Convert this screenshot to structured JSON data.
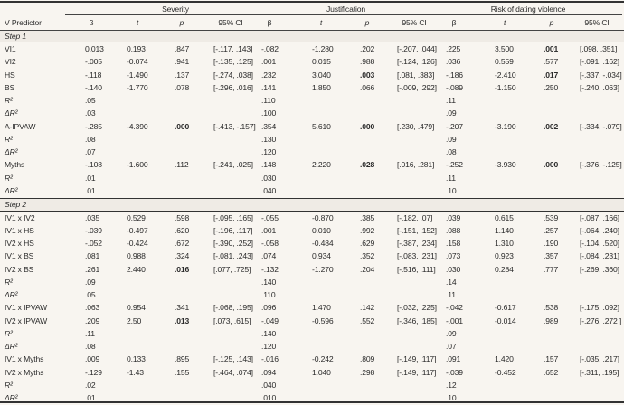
{
  "table": {
    "groups": [
      "Severity",
      "Justification",
      "Risk of dating violence"
    ],
    "header": {
      "predictor": "V Predictor",
      "beta": "β",
      "t": "t",
      "p": "p",
      "ci": "95% CI"
    },
    "steps": [
      {
        "label": "Step 1",
        "rows": [
          {
            "label": "VI1",
            "italic": false,
            "sev": [
              "0.013",
              "0.193",
              ".847",
              "[-.117, .143]"
            ],
            "jus": [
              "-.082",
              "-1.280",
              ".202",
              "[-.207, .044]"
            ],
            "risk": [
              ".225",
              "3.500",
              ".001",
              "[.098, .351]"
            ],
            "bold": {
              "sev": false,
              "jus": false,
              "risk": true
            }
          },
          {
            "label": "VI2",
            "italic": false,
            "sev": [
              "-.005",
              "-0.074",
              ".941",
              "[-.135, .125]"
            ],
            "jus": [
              ".001",
              "0.015",
              ".988",
              "[-.124, .126]"
            ],
            "risk": [
              ".036",
              "0.559",
              ".577",
              "[-.091, .162]"
            ],
            "bold": {
              "sev": false,
              "jus": false,
              "risk": false
            }
          },
          {
            "label": "HS",
            "italic": false,
            "sev": [
              "-.118",
              "-1.490",
              ".137",
              "[-.274, .038]"
            ],
            "jus": [
              ".232",
              "3.040",
              ".003",
              "[.081, .383]"
            ],
            "risk": [
              "-.186",
              "-2.410",
              ".017",
              "[-.337, -.034]"
            ],
            "bold": {
              "sev": false,
              "jus": true,
              "risk": true
            }
          },
          {
            "label": "BS",
            "italic": false,
            "sev": [
              "-.140",
              "-1.770",
              ".078",
              "[-.296, .016]"
            ],
            "jus": [
              ".141",
              "1.850",
              ".066",
              "[-.009, .292]"
            ],
            "risk": [
              "-.089",
              "-1.150",
              ".250",
              "[-.240, .063]"
            ],
            "bold": {
              "sev": false,
              "jus": false,
              "risk": false
            }
          },
          {
            "label": "R²",
            "italic": true,
            "sev": [
              ".05"
            ],
            "jus": [
              ".110"
            ],
            "risk": [
              ".11"
            ]
          },
          {
            "label": "ΔR²",
            "italic": true,
            "sev": [
              ".03"
            ],
            "jus": [
              ".100"
            ],
            "risk": [
              ".09"
            ]
          },
          {
            "label": "A-IPVAW",
            "italic": false,
            "sev": [
              "-.285",
              "-4.390",
              ".000",
              "[-.413, -.157]"
            ],
            "jus": [
              ".354",
              "5.610",
              ".000",
              "[.230, .479]"
            ],
            "risk": [
              "-.207",
              "-3.190",
              ".002",
              "[-.334, -.079]"
            ],
            "bold": {
              "sev": true,
              "jus": true,
              "risk": true
            }
          },
          {
            "label": "R²",
            "italic": true,
            "sev": [
              ".08"
            ],
            "jus": [
              ".130"
            ],
            "risk": [
              ".09"
            ]
          },
          {
            "label": "ΔR²",
            "italic": true,
            "sev": [
              ".07"
            ],
            "jus": [
              ".120"
            ],
            "risk": [
              ".08"
            ]
          },
          {
            "label": "Myths",
            "italic": false,
            "sev": [
              "-.108",
              "-1.600",
              ".112",
              "[-.241, .025]"
            ],
            "jus": [
              ".148",
              "2.220",
              ".028",
              "[.016, .281]"
            ],
            "risk": [
              "-.252",
              "-3.930",
              ".000",
              "[-.376, -.125]"
            ],
            "bold": {
              "sev": false,
              "jus": true,
              "risk": true
            }
          },
          {
            "label": "R²",
            "italic": true,
            "sev": [
              ".01"
            ],
            "jus": [
              ".030"
            ],
            "risk": [
              ".11"
            ]
          },
          {
            "label": "ΔR²",
            "italic": true,
            "sev": [
              ".01"
            ],
            "jus": [
              ".040"
            ],
            "risk": [
              ".10"
            ]
          }
        ]
      },
      {
        "label": "Step 2",
        "rows": [
          {
            "label": "IV1 x IV2",
            "italic": false,
            "sev": [
              ".035",
              "0.529",
              ".598",
              "[-.095, .165]"
            ],
            "jus": [
              "-.055",
              "-0.870",
              ".385",
              "[-.182, .07]"
            ],
            "risk": [
              ".039",
              "0.615",
              ".539",
              "[-.087, .166]"
            ],
            "bold": {
              "sev": false,
              "jus": false,
              "risk": false
            }
          },
          {
            "label": "IV1 x HS",
            "italic": false,
            "sev": [
              "-.039",
              "-0.497",
              ".620",
              "[-.196, .117]"
            ],
            "jus": [
              ".001",
              "0.010",
              ".992",
              "[-.151, .152]"
            ],
            "risk": [
              ".088",
              "1.140",
              ".257",
              "[-.064, .240]"
            ],
            "bold": {
              "sev": false,
              "jus": false,
              "risk": false
            }
          },
          {
            "label": "IV2 x HS",
            "italic": false,
            "sev": [
              "-.052",
              "-0.424",
              ".672",
              "[-.390, .252]"
            ],
            "jus": [
              "-.058",
              "-0.484",
              ".629",
              "[-.387, .234]"
            ],
            "risk": [
              ".158",
              "1.310",
              ".190",
              "[-.104, .520]"
            ],
            "bold": {
              "sev": false,
              "jus": false,
              "risk": false
            }
          },
          {
            "label": "IV1 x BS",
            "italic": false,
            "sev": [
              ".081",
              "0.988",
              ".324",
              "[-.081, .243]"
            ],
            "jus": [
              ".074",
              "0.934",
              ".352",
              "[-.083, .231]"
            ],
            "risk": [
              ".073",
              "0.923",
              ".357",
              "[-.084, .231]"
            ],
            "bold": {
              "sev": false,
              "jus": false,
              "risk": false
            }
          },
          {
            "label": "IV2 x BS",
            "italic": false,
            "sev": [
              ".261",
              "2.440",
              ".016",
              "[.077, .725]"
            ],
            "jus": [
              "-.132",
              "-1.270",
              ".204",
              "[-.516, .111]"
            ],
            "risk": [
              ".030",
              "0.284",
              ".777",
              "[-.269, .360]"
            ],
            "bold": {
              "sev": true,
              "jus": false,
              "risk": false
            }
          },
          {
            "label": "R²",
            "italic": true,
            "sev": [
              ".09"
            ],
            "jus": [
              ".140"
            ],
            "risk": [
              ".14"
            ]
          },
          {
            "label": "ΔR²",
            "italic": true,
            "sev": [
              ".05"
            ],
            "jus": [
              ".110"
            ],
            "risk": [
              ".11"
            ]
          },
          {
            "label": "IV1 x IPVAW",
            "italic": false,
            "sev": [
              ".063",
              "0.954",
              ".341",
              "[-.068, .195]"
            ],
            "jus": [
              ".096",
              "1.470",
              ".142",
              "[-.032, .225]"
            ],
            "risk": [
              "-.042",
              "-0.617",
              ".538",
              "[-.175, .092]"
            ],
            "bold": {
              "sev": false,
              "jus": false,
              "risk": false
            }
          },
          {
            "label": "IV2 x IPVAW",
            "italic": false,
            "sev": [
              ".209",
              "2.50",
              ".013",
              "[.073, .615]"
            ],
            "jus": [
              "-.049",
              "-0.596",
              ".552",
              "[-.346, .185]"
            ],
            "risk": [
              "-.001",
              "-0.014",
              ".989",
              "[-.276, .272 ]"
            ],
            "bold": {
              "sev": true,
              "jus": false,
              "risk": false
            }
          },
          {
            "label": "R²",
            "italic": true,
            "sev": [
              ".11"
            ],
            "jus": [
              ".140"
            ],
            "risk": [
              ".09"
            ]
          },
          {
            "label": "ΔR²",
            "italic": true,
            "sev": [
              ".08"
            ],
            "jus": [
              ".120"
            ],
            "risk": [
              ".07"
            ]
          },
          {
            "label": "IV1 x Myths",
            "italic": false,
            "sev": [
              ".009",
              "0.133",
              ".895",
              "[-.125, .143]"
            ],
            "jus": [
              "-.016",
              "-0.242",
              ".809",
              "[-.149, .117]"
            ],
            "risk": [
              ".091",
              "1.420",
              ".157",
              "[-.035, .217]"
            ],
            "bold": {
              "sev": false,
              "jus": false,
              "risk": false
            }
          },
          {
            "label": "IV2 x Myths",
            "italic": false,
            "sev": [
              "-.129",
              "-1.43",
              ".155",
              "[-.464, .074]"
            ],
            "jus": [
              ".094",
              "1.040",
              ".298",
              "[-.149, .117]"
            ],
            "risk": [
              "-.039",
              "-0.452",
              ".652",
              "[-.311, .195]"
            ],
            "bold": {
              "sev": false,
              "jus": false,
              "risk": false
            }
          },
          {
            "label": "R²",
            "italic": true,
            "sev": [
              ".02"
            ],
            "jus": [
              ".040"
            ],
            "risk": [
              ".12"
            ]
          },
          {
            "label": "ΔR²",
            "italic": true,
            "sev": [
              ".01"
            ],
            "jus": [
              ".010"
            ],
            "risk": [
              ".10"
            ]
          }
        ]
      }
    ]
  }
}
